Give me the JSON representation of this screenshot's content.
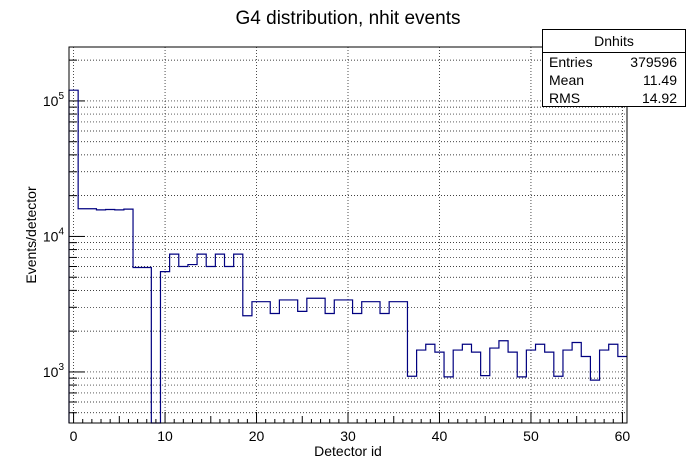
{
  "chart_data": {
    "type": "histogram",
    "title": "G4 distribution, nhit events",
    "xlabel": "Detector id",
    "ylabel": "Events/detector",
    "xlim": [
      -0.5,
      60.5
    ],
    "ylim": [
      420,
      250000
    ],
    "log_y": true,
    "grid": true,
    "line_color": "#000080",
    "bin_width": 1,
    "bin_start": -0.5,
    "values": [
      120000,
      16000,
      16000,
      15700,
      15800,
      15700,
      15900,
      5900,
      5900,
      0,
      5500,
      7400,
      6000,
      6200,
      7400,
      6000,
      7400,
      6000,
      7400,
      2600,
      3300,
      3300,
      2700,
      3400,
      3400,
      2800,
      3500,
      3500,
      2700,
      3400,
      3400,
      2700,
      3300,
      3300,
      2700,
      3300,
      3300,
      930,
      1450,
      1600,
      1400,
      920,
      1450,
      1600,
      1400,
      940,
      1500,
      1700,
      1400,
      920,
      1450,
      1600,
      1400,
      930,
      1450,
      1650,
      1300,
      870,
      1450,
      1600,
      1300
    ],
    "x_ticks": [
      0,
      10,
      20,
      30,
      40,
      50,
      60
    ],
    "y_ticks": [
      {
        "value": 1000,
        "mantissa": "10",
        "exp": "3"
      },
      {
        "value": 10000,
        "mantissa": "10",
        "exp": "4"
      },
      {
        "value": 100000,
        "mantissa": "10",
        "exp": "5"
      }
    ],
    "stats": {
      "name": "Dnhits",
      "rows": [
        {
          "label": "Entries",
          "value": "379596"
        },
        {
          "label": "Mean",
          "value": "11.49"
        },
        {
          "label": "RMS",
          "value": "14.92"
        }
      ]
    }
  }
}
